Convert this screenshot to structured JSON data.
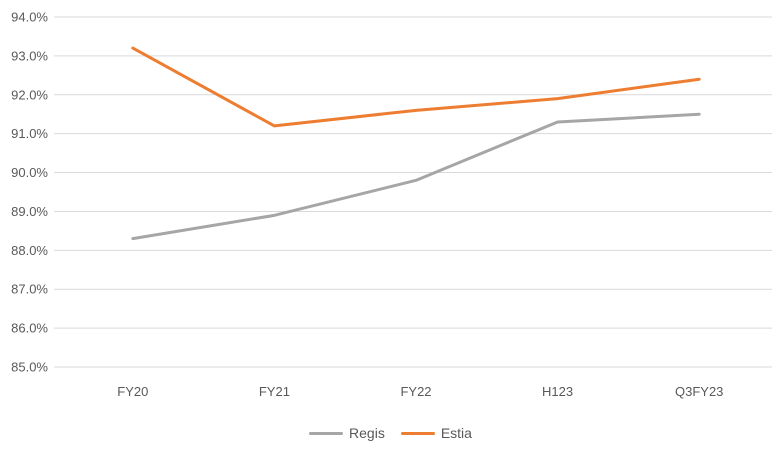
{
  "chart_data": {
    "type": "line",
    "title": "",
    "xlabel": "",
    "ylabel": "",
    "categories": [
      "FY20",
      "FY21",
      "FY22",
      "H123",
      "Q3FY23"
    ],
    "series": [
      {
        "name": "Regis",
        "color": "#a6a6a6",
        "values": [
          88.3,
          88.9,
          89.8,
          91.3,
          91.5
        ]
      },
      {
        "name": "Estia",
        "color": "#ed7d31",
        "values": [
          93.2,
          91.2,
          91.6,
          91.9,
          92.4
        ]
      }
    ],
    "ylim": [
      85.0,
      94.0
    ],
    "ytick_step": 1.0,
    "ytick_labels": [
      "85.0%",
      "86.0%",
      "87.0%",
      "88.0%",
      "89.0%",
      "90.0%",
      "91.0%",
      "92.0%",
      "93.0%",
      "94.0%"
    ],
    "ytick_format": "percent_1dp",
    "grid": true,
    "gridline_color": "#d9d9d9",
    "label_color": "#595959",
    "line_width": 3,
    "legend_position": "bottom"
  }
}
